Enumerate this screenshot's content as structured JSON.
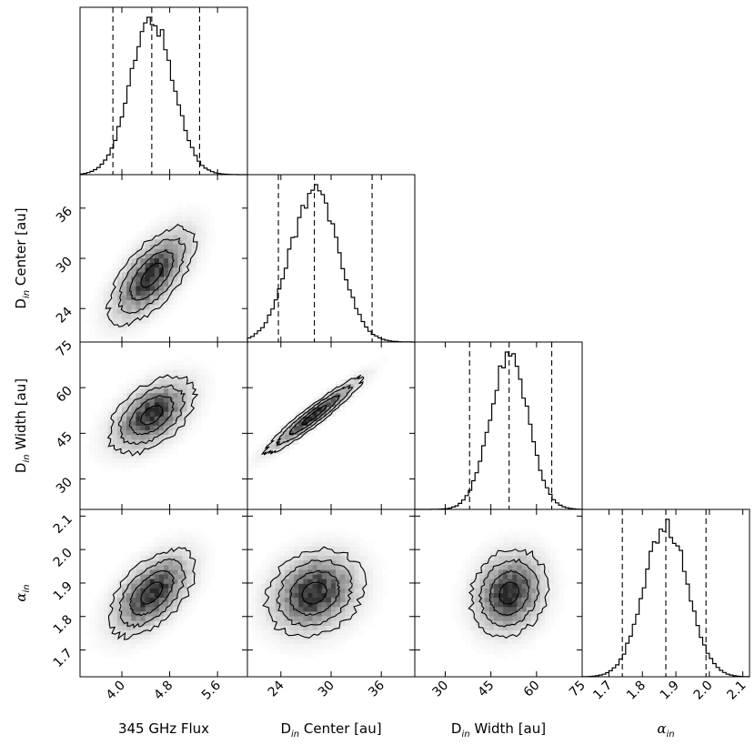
{
  "chart_data": {
    "type": "corner",
    "title": "",
    "parameters": [
      {
        "key": "flux",
        "label_text": "345 GHz Flux",
        "label_main": "345 GHz Flux",
        "label_sub": "",
        "label_tail": "",
        "range": [
          3.3,
          6.1
        ],
        "ticks": [
          4.0,
          4.8,
          5.6
        ],
        "tick_labels": [
          "4.0",
          "4.8",
          "5.6"
        ],
        "quantiles": [
          3.85,
          4.5,
          5.3
        ],
        "median": 4.5,
        "sigma": 0.36
      },
      {
        "key": "center",
        "label_text": "Din Center [au]",
        "label_main": "D",
        "label_sub": "in",
        "label_tail": " Center [au]",
        "range": [
          20.0,
          40.0
        ],
        "ticks": [
          24,
          30,
          36
        ],
        "tick_labels": [
          "24",
          "30",
          "36"
        ],
        "quantiles": [
          23.7,
          28.0,
          34.9
        ],
        "median": 28.0,
        "sigma": 2.9
      },
      {
        "key": "width",
        "label_text": "Din Width [au]",
        "label_main": "D",
        "label_sub": "in",
        "label_tail": " Width [au]",
        "range": [
          20.0,
          75.0
        ],
        "ticks": [
          30,
          45,
          60,
          75
        ],
        "tick_labels": [
          "30",
          "45",
          "60",
          "75"
        ],
        "quantiles": [
          38.0,
          51.0,
          65.0
        ],
        "median": 51.0,
        "sigma": 6.3
      },
      {
        "key": "alpha",
        "label_text": "αin",
        "label_main": "α",
        "label_sub": "in",
        "label_tail": "",
        "range": [
          1.62,
          2.12
        ],
        "ticks": [
          1.7,
          1.8,
          1.9,
          2.0,
          2.1
        ],
        "tick_labels": [
          "1.7",
          "1.8",
          "1.9",
          "2.0",
          "2.1"
        ],
        "quantiles": [
          1.74,
          1.87,
          1.99
        ],
        "median": 1.87,
        "sigma": 0.065
      }
    ],
    "correlations": [
      {
        "row": 1,
        "col": 0,
        "rho": 0.65
      },
      {
        "row": 2,
        "col": 0,
        "rho": 0.5
      },
      {
        "row": 2,
        "col": 1,
        "rho": 0.95
      },
      {
        "row": 3,
        "col": 0,
        "rho": 0.55
      },
      {
        "row": 3,
        "col": 1,
        "rho": 0.2
      },
      {
        "row": 3,
        "col": 2,
        "rho": 0.15
      }
    ],
    "contour_levels_sigma": [
      0.5,
      1.0,
      1.5,
      2.0
    ],
    "histogram_style": "step",
    "quantile_line_style": "dashed",
    "colors": {
      "axes": "#000000",
      "density_max": "#2a2a2a",
      "contour": "#000000"
    }
  },
  "axis_labels": {
    "flux": {
      "text": "345 GHz Flux"
    },
    "center": {
      "main": "D",
      "sub": "in",
      "tail": " Center [au]"
    },
    "width": {
      "main": "D",
      "sub": "in",
      "tail": " Width [au]"
    },
    "alpha": {
      "main": "α",
      "sub": "in"
    }
  }
}
